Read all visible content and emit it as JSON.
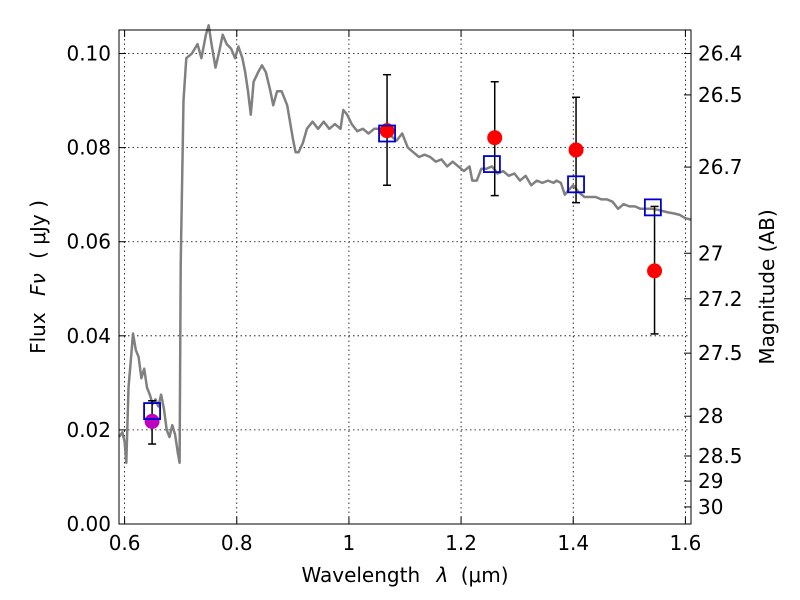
{
  "chart_data": {
    "type": "scatter",
    "xlabel_text": "Wavelength",
    "xlabel_symbol": "λ",
    "xlabel_unit": "(μm)",
    "ylabel_text": "Flux",
    "ylabel_symbol": "Fν",
    "ylabel_unit": "( μJy )",
    "y2label": "Magnitude (AB)",
    "xlim": [
      0.59,
      1.61
    ],
    "ylim": [
      0.0,
      0.105
    ],
    "grid": true,
    "x_ticks": [
      {
        "value": 0.6,
        "label": "0.6"
      },
      {
        "value": 0.8,
        "label": "0.8"
      },
      {
        "value": 1.0,
        "label": "1"
      },
      {
        "value": 1.2,
        "label": "1.2"
      },
      {
        "value": 1.4,
        "label": "1.4"
      },
      {
        "value": 1.6,
        "label": "1.6"
      }
    ],
    "y_ticks": [
      {
        "value": 0.0,
        "label": "0.00"
      },
      {
        "value": 0.02,
        "label": "0.02"
      },
      {
        "value": 0.04,
        "label": "0.04"
      },
      {
        "value": 0.06,
        "label": "0.06"
      },
      {
        "value": 0.08,
        "label": "0.08"
      },
      {
        "value": 0.1,
        "label": "0.10"
      }
    ],
    "y2_ticks": [
      {
        "mag": 26.4,
        "label": "26.4"
      },
      {
        "mag": 26.5,
        "label": "26.5"
      },
      {
        "mag": 26.7,
        "label": "26.7"
      },
      {
        "mag": 27.0,
        "label": "27"
      },
      {
        "mag": 27.2,
        "label": "27.2"
      },
      {
        "mag": 27.5,
        "label": "27.5"
      },
      {
        "mag": 28.0,
        "label": "28"
      },
      {
        "mag": 28.5,
        "label": "28.5"
      },
      {
        "mag": 29.0,
        "label": "29"
      },
      {
        "mag": 30.0,
        "label": "30"
      }
    ],
    "colors": {
      "spectrum": "#808080",
      "observed": "#ff0000",
      "observed_optical": "#bf00bf",
      "model_band": "#0000cc",
      "errorbar": "#000000",
      "grid": "#000000"
    },
    "series": [
      {
        "role": "model-spectrum",
        "points": [
          [
            0.59,
            0.0185
          ],
          [
            0.596,
            0.0195
          ],
          [
            0.6,
            0.0175
          ],
          [
            0.603,
            0.013
          ],
          [
            0.607,
            0.029
          ],
          [
            0.612,
            0.036
          ],
          [
            0.615,
            0.0405
          ],
          [
            0.62,
            0.037
          ],
          [
            0.625,
            0.0355
          ],
          [
            0.63,
            0.031
          ],
          [
            0.635,
            0.033
          ],
          [
            0.64,
            0.029
          ],
          [
            0.645,
            0.0275
          ],
          [
            0.65,
            0.0255
          ],
          [
            0.655,
            0.0265
          ],
          [
            0.66,
            0.025
          ],
          [
            0.665,
            0.0275
          ],
          [
            0.67,
            0.0245
          ],
          [
            0.675,
            0.02
          ],
          [
            0.68,
            0.0185
          ],
          [
            0.685,
            0.021
          ],
          [
            0.69,
            0.019
          ],
          [
            0.695,
            0.015
          ],
          [
            0.698,
            0.013
          ],
          [
            0.7,
            0.055
          ],
          [
            0.705,
            0.09
          ],
          [
            0.71,
            0.099
          ],
          [
            0.72,
            0.1
          ],
          [
            0.73,
            0.102
          ],
          [
            0.737,
            0.099
          ],
          [
            0.745,
            0.104
          ],
          [
            0.75,
            0.106
          ],
          [
            0.755,
            0.102
          ],
          [
            0.762,
            0.097
          ],
          [
            0.768,
            0.1
          ],
          [
            0.775,
            0.104
          ],
          [
            0.782,
            0.102
          ],
          [
            0.79,
            0.101
          ],
          [
            0.797,
            0.099
          ],
          [
            0.803,
            0.1015
          ],
          [
            0.81,
            0.099
          ],
          [
            0.815,
            0.096
          ],
          [
            0.82,
            0.092
          ],
          [
            0.825,
            0.087
          ],
          [
            0.83,
            0.094
          ],
          [
            0.838,
            0.096
          ],
          [
            0.845,
            0.0975
          ],
          [
            0.852,
            0.096
          ],
          [
            0.86,
            0.092
          ],
          [
            0.865,
            0.089
          ],
          [
            0.872,
            0.092
          ],
          [
            0.88,
            0.092
          ],
          [
            0.89,
            0.089
          ],
          [
            0.9,
            0.082
          ],
          [
            0.905,
            0.079
          ],
          [
            0.91,
            0.079
          ],
          [
            0.918,
            0.081
          ],
          [
            0.925,
            0.084
          ],
          [
            0.935,
            0.0855
          ],
          [
            0.945,
            0.084
          ],
          [
            0.955,
            0.0855
          ],
          [
            0.965,
            0.084
          ],
          [
            0.975,
            0.085
          ],
          [
            0.985,
            0.084
          ],
          [
            0.99,
            0.088
          ],
          [
            0.997,
            0.087
          ],
          [
            1.005,
            0.085
          ],
          [
            1.015,
            0.0835
          ],
          [
            1.025,
            0.084
          ],
          [
            1.035,
            0.083
          ],
          [
            1.045,
            0.084
          ],
          [
            1.055,
            0.084
          ],
          [
            1.065,
            0.083
          ],
          [
            1.075,
            0.0825
          ],
          [
            1.085,
            0.0815
          ],
          [
            1.095,
            0.083
          ],
          [
            1.105,
            0.08
          ],
          [
            1.115,
            0.079
          ],
          [
            1.125,
            0.078
          ],
          [
            1.135,
            0.0785
          ],
          [
            1.145,
            0.078
          ],
          [
            1.155,
            0.077
          ],
          [
            1.165,
            0.0775
          ],
          [
            1.175,
            0.076
          ],
          [
            1.185,
            0.077
          ],
          [
            1.195,
            0.076
          ],
          [
            1.205,
            0.075
          ],
          [
            1.215,
            0.076
          ],
          [
            1.22,
            0.073
          ],
          [
            1.228,
            0.073
          ],
          [
            1.236,
            0.0755
          ],
          [
            1.245,
            0.0755
          ],
          [
            1.255,
            0.076
          ],
          [
            1.265,
            0.0745
          ],
          [
            1.275,
            0.075
          ],
          [
            1.285,
            0.074
          ],
          [
            1.295,
            0.0745
          ],
          [
            1.305,
            0.073
          ],
          [
            1.315,
            0.074
          ],
          [
            1.325,
            0.072
          ],
          [
            1.335,
            0.073
          ],
          [
            1.345,
            0.0725
          ],
          [
            1.355,
            0.073
          ],
          [
            1.365,
            0.0725
          ],
          [
            1.37,
            0.073
          ],
          [
            1.378,
            0.0725
          ],
          [
            1.385,
            0.07
          ],
          [
            1.392,
            0.071
          ],
          [
            1.4,
            0.072
          ],
          [
            1.41,
            0.0705
          ],
          [
            1.42,
            0.0695
          ],
          [
            1.43,
            0.0695
          ],
          [
            1.44,
            0.0695
          ],
          [
            1.45,
            0.069
          ],
          [
            1.46,
            0.069
          ],
          [
            1.47,
            0.0685
          ],
          [
            1.48,
            0.067
          ],
          [
            1.49,
            0.068
          ],
          [
            1.5,
            0.0675
          ],
          [
            1.51,
            0.0675
          ],
          [
            1.52,
            0.067
          ],
          [
            1.53,
            0.067
          ],
          [
            1.54,
            0.067
          ],
          [
            1.55,
            0.0668
          ],
          [
            1.56,
            0.0665
          ],
          [
            1.57,
            0.0662
          ],
          [
            1.58,
            0.066
          ],
          [
            1.59,
            0.0657
          ],
          [
            1.6,
            0.065
          ],
          [
            1.61,
            0.0647
          ]
        ]
      },
      {
        "role": "observed",
        "points": [
          {
            "x": 0.649,
            "y": 0.0218,
            "yerr_lo": 0.017,
            "yerr_hi": 0.0262,
            "color": "#bf00bf"
          },
          {
            "x": 1.068,
            "y": 0.0836,
            "yerr_lo": 0.072,
            "yerr_hi": 0.0955,
            "color": "#ff0000"
          },
          {
            "x": 1.26,
            "y": 0.0821,
            "yerr_lo": 0.0698,
            "yerr_hi": 0.094,
            "color": "#ff0000"
          },
          {
            "x": 1.405,
            "y": 0.0795,
            "yerr_lo": 0.0683,
            "yerr_hi": 0.0907,
            "color": "#ff0000"
          },
          {
            "x": 1.545,
            "y": 0.0538,
            "yerr_lo": 0.0404,
            "yerr_hi": 0.0675,
            "color": "#ff0000"
          }
        ]
      },
      {
        "role": "model-band",
        "points": [
          {
            "x": 0.649,
            "y": 0.024
          },
          {
            "x": 1.068,
            "y": 0.083
          },
          {
            "x": 1.255,
            "y": 0.0765
          },
          {
            "x": 1.405,
            "y": 0.0722
          },
          {
            "x": 1.542,
            "y": 0.0673
          }
        ]
      }
    ]
  }
}
